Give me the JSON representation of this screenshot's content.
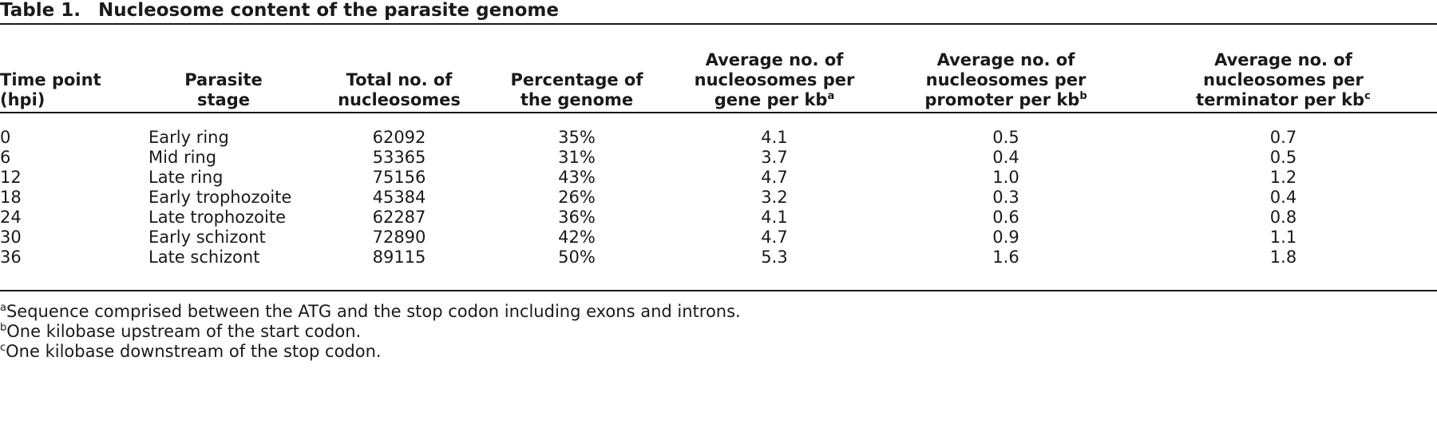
{
  "table": {
    "label": "Table 1.",
    "title": "Nucleosome content of the parasite genome",
    "headers": [
      {
        "lines": [
          "Time point",
          "(hpi)"
        ],
        "sup": ""
      },
      {
        "lines": [
          "Parasite",
          "stage"
        ],
        "sup": ""
      },
      {
        "lines": [
          "Total no. of",
          "nucleosomes"
        ],
        "sup": ""
      },
      {
        "lines": [
          "Percentage of",
          "the genome"
        ],
        "sup": ""
      },
      {
        "lines": [
          "Average no. of",
          "nucleosomes per",
          "gene per kb"
        ],
        "sup": "a"
      },
      {
        "lines": [
          "Average no. of",
          "nucleosomes per",
          "promoter per kb"
        ],
        "sup": "b"
      },
      {
        "lines": [
          "Average no. of",
          "nucleosomes per",
          "terminator per kb"
        ],
        "sup": "c"
      }
    ],
    "rows": [
      [
        "0",
        "Early ring",
        "62092",
        "35%",
        "4.1",
        "0.5",
        "0.7"
      ],
      [
        "6",
        "Mid ring",
        "53365",
        "31%",
        "3.7",
        "0.4",
        "0.5"
      ],
      [
        "12",
        "Late ring",
        "75156",
        "43%",
        "4.7",
        "1.0",
        "1.2"
      ],
      [
        "18",
        "Early trophozoite",
        "45384",
        "26%",
        "3.2",
        "0.3",
        "0.4"
      ],
      [
        "24",
        "Late trophozoite",
        "62287",
        "36%",
        "4.1",
        "0.6",
        "0.8"
      ],
      [
        "30",
        "Early schizont",
        "72890",
        "42%",
        "4.7",
        "0.9",
        "1.1"
      ],
      [
        "36",
        "Late schizont",
        "89115",
        "50%",
        "5.3",
        "1.6",
        "1.8"
      ]
    ],
    "footnotes": [
      {
        "mark": "a",
        "text": "Sequence comprised between the ATG and the stop codon including exons and introns."
      },
      {
        "mark": "b",
        "text": "One kilobase upstream of the start codon."
      },
      {
        "mark": "c",
        "text": "One kilobase downstream of the stop codon."
      }
    ]
  }
}
